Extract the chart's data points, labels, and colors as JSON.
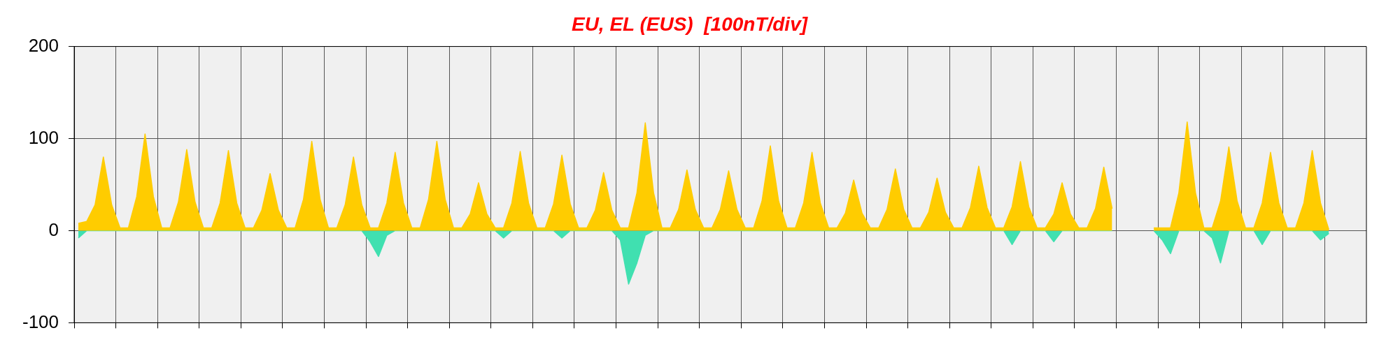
{
  "chart_data": {
    "type": "area",
    "title": "EU, EL (EUS)  [100nT/div]",
    "categories": [
      null,
      null,
      null,
      null,
      null,
      null,
      null,
      null,
      null,
      null,
      null,
      null,
      null,
      null,
      null,
      null,
      null,
      null,
      null,
      null,
      null,
      null,
      null,
      null,
      null,
      null,
      null,
      null,
      null,
      null,
      null,
      null,
      null,
      null,
      null,
      null,
      null,
      null,
      null,
      null,
      null,
      null,
      null,
      null,
      null,
      null,
      null,
      null,
      null,
      null,
      null,
      null,
      null,
      null,
      null,
      null,
      null,
      null,
      null,
      null,
      null,
      null,
      null,
      null,
      null,
      null,
      null,
      null,
      null,
      null,
      null,
      null,
      null,
      null,
      null,
      null,
      null,
      null,
      null,
      null,
      null,
      null,
      null,
      null,
      null,
      null,
      null,
      null,
      null,
      null,
      null,
      null,
      null,
      null,
      null,
      null,
      null,
      null,
      null,
      null,
      null,
      null,
      null,
      null,
      null,
      null,
      null,
      null,
      null,
      null,
      null,
      null,
      null,
      null,
      null,
      null,
      null,
      null,
      null,
      null,
      null,
      null,
      null,
      null,
      null,
      null,
      null,
      null,
      null,
      null,
      null,
      null,
      null,
      null,
      null,
      null,
      null,
      null,
      null,
      null,
      null,
      null,
      null,
      null,
      null,
      null,
      null,
      null,
      null,
      null,
      null,
      null,
      null,
      null,
      null
    ],
    "ylim": [
      -100,
      200
    ],
    "yticks": [
      -100,
      0,
      100,
      200
    ],
    "grid": true,
    "tick_labels": "y",
    "marker": "none",
    "line_style": "solid",
    "series": [
      {
        "color": "#ffcc00",
        "values": [
          8,
          10,
          28,
          80,
          28,
          3,
          3,
          37,
          105,
          37,
          3,
          3,
          31,
          88,
          31,
          3,
          3,
          30,
          87,
          30,
          3,
          3,
          22,
          62,
          22,
          3,
          3,
          34,
          97,
          34,
          3,
          3,
          28,
          80,
          28,
          3,
          3,
          30,
          85,
          30,
          3,
          3,
          34,
          97,
          34,
          3,
          3,
          18,
          52,
          18,
          3,
          3,
          30,
          86,
          30,
          3,
          3,
          29,
          82,
          29,
          3,
          3,
          22,
          63,
          22,
          3,
          3,
          41,
          117,
          41,
          3,
          3,
          23,
          66,
          23,
          3,
          3,
          23,
          65,
          23,
          3,
          3,
          32,
          92,
          32,
          3,
          3,
          30,
          85,
          30,
          3,
          3,
          19,
          55,
          19,
          3,
          3,
          23,
          67,
          23,
          3,
          3,
          20,
          57,
          20,
          3,
          3,
          25,
          70,
          25,
          3,
          3,
          26,
          75,
          26,
          3,
          3,
          18,
          52,
          18,
          3,
          3,
          24,
          69,
          24,
          null,
          null,
          null,
          null,
          null,
          null,
          null,
          null,
          null,
          null,
          null,
          null,
          null,
          null,
          null,
          null,
          null,
          null,
          null,
          null,
          null,
          null,
          null,
          null,
          null,
          null,
          null,
          null,
          null,
          null
        ]
      },
      {
        "color": "#ffcc00",
        "values": [
          null,
          null,
          null,
          null,
          null,
          null,
          null,
          null,
          null,
          null,
          null,
          null,
          null,
          null,
          null,
          null,
          null,
          null,
          null,
          null,
          null,
          null,
          null,
          null,
          null,
          null,
          null,
          null,
          null,
          null,
          null,
          null,
          null,
          null,
          null,
          null,
          null,
          null,
          null,
          null,
          null,
          null,
          null,
          null,
          null,
          null,
          null,
          null,
          null,
          null,
          null,
          null,
          null,
          null,
          null,
          null,
          null,
          null,
          null,
          null,
          null,
          null,
          null,
          null,
          null,
          null,
          null,
          null,
          null,
          null,
          null,
          null,
          null,
          null,
          null,
          null,
          null,
          null,
          null,
          null,
          null,
          null,
          null,
          null,
          null,
          null,
          null,
          null,
          null,
          null,
          null,
          null,
          null,
          null,
          null,
          null,
          null,
          null,
          null,
          null,
          null,
          null,
          null,
          null,
          null,
          null,
          null,
          null,
          null,
          null,
          null,
          null,
          null,
          null,
          null,
          null,
          null,
          null,
          null,
          null,
          null,
          null,
          null,
          null,
          null,
          null,
          null,
          null,
          null,
          3,
          3,
          3,
          41,
          118,
          41,
          3,
          3,
          32,
          91,
          32,
          3,
          3,
          30,
          85,
          30,
          3,
          3,
          30,
          87,
          30,
          1,
          null,
          null,
          null,
          null
        ]
      },
      {
        "color": "#40e0b0",
        "values": [
          -8,
          0,
          0,
          0,
          0,
          0,
          0,
          0,
          0,
          0,
          0,
          0,
          0,
          0,
          0,
          0,
          0,
          0,
          0,
          0,
          0,
          0,
          0,
          0,
          0,
          0,
          0,
          0,
          0,
          0,
          0,
          0,
          0,
          0,
          0,
          -12,
          -28,
          -5,
          0,
          0,
          0,
          0,
          0,
          0,
          0,
          0,
          0,
          0,
          0,
          0,
          0,
          -8,
          0,
          0,
          0,
          0,
          0,
          0,
          -8,
          0,
          0,
          0,
          0,
          0,
          0,
          -10,
          -58,
          -35,
          -5,
          0,
          0,
          0,
          0,
          0,
          0,
          0,
          0,
          0,
          0,
          0,
          0,
          0,
          0,
          0,
          0,
          0,
          0,
          0,
          0,
          0,
          0,
          0,
          0,
          0,
          0,
          0,
          0,
          0,
          0,
          0,
          0,
          0,
          0,
          0,
          0,
          0,
          0,
          0,
          0,
          0,
          0,
          0,
          -15,
          0,
          0,
          0,
          0,
          -12,
          0,
          0,
          0,
          0,
          0,
          0,
          0,
          null,
          null,
          null,
          null,
          null,
          null,
          null,
          null,
          null,
          null,
          null,
          null,
          null,
          null,
          null,
          null,
          null,
          null,
          null,
          null,
          null,
          null,
          null,
          null,
          null,
          null,
          null,
          null,
          null,
          null
        ]
      },
      {
        "color": "#40e0b0",
        "values": [
          null,
          null,
          null,
          null,
          null,
          null,
          null,
          null,
          null,
          null,
          null,
          null,
          null,
          null,
          null,
          null,
          null,
          null,
          null,
          null,
          null,
          null,
          null,
          null,
          null,
          null,
          null,
          null,
          null,
          null,
          null,
          null,
          null,
          null,
          null,
          null,
          null,
          null,
          null,
          null,
          null,
          null,
          null,
          null,
          null,
          null,
          null,
          null,
          null,
          null,
          null,
          null,
          null,
          null,
          null,
          null,
          null,
          null,
          null,
          null,
          null,
          null,
          null,
          null,
          null,
          null,
          null,
          null,
          null,
          null,
          null,
          null,
          null,
          null,
          null,
          null,
          null,
          null,
          null,
          null,
          null,
          null,
          null,
          null,
          null,
          null,
          null,
          null,
          null,
          null,
          null,
          null,
          null,
          null,
          null,
          null,
          null,
          null,
          null,
          null,
          null,
          null,
          null,
          null,
          null,
          null,
          null,
          null,
          null,
          null,
          null,
          null,
          null,
          null,
          null,
          null,
          null,
          null,
          null,
          null,
          null,
          null,
          null,
          null,
          null,
          null,
          null,
          null,
          null,
          0,
          -10,
          -25,
          0,
          0,
          0,
          0,
          -8,
          -35,
          0,
          0,
          0,
          0,
          -15,
          0,
          0,
          0,
          0,
          0,
          0,
          -10,
          -3,
          null,
          null,
          null,
          null
        ]
      }
    ]
  }
}
